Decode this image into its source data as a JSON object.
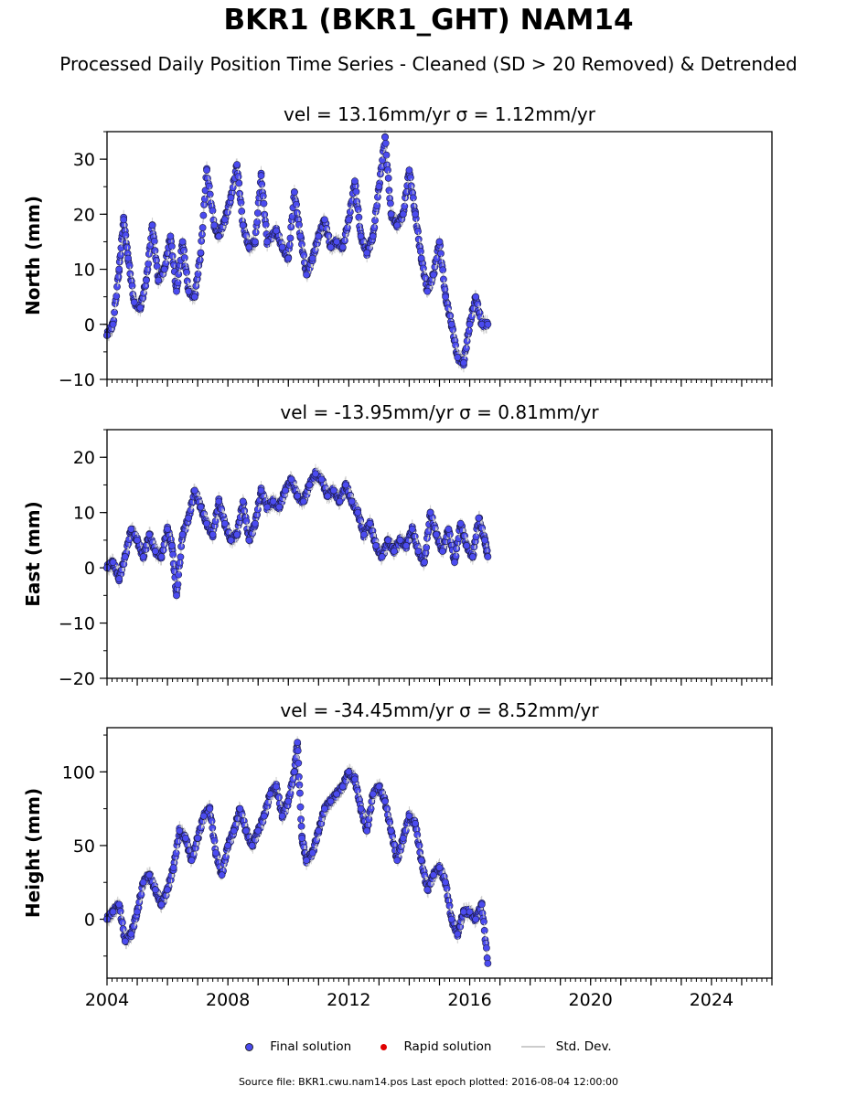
{
  "title": "BKR1 (BKR1_GHT) NAM14",
  "subtitle": "Processed Daily Position Time Series - Cleaned (SD > 20 Removed) & Detrended",
  "legend": {
    "final": "Final solution",
    "rapid": "Rapid solution",
    "std": "Std. Dev."
  },
  "footer": "Source file: BKR1.cwu.nam14.pos  Last epoch plotted: 2016-08-04 12:00:00",
  "colors": {
    "final": "#4b4bf0",
    "rapid": "#e00000",
    "std": "#cccccc"
  },
  "chart_data": [
    {
      "type": "scatter",
      "title": "vel = 13.16mm/yr   σ = 1.12mm/yr",
      "ylabel": "North (mm)",
      "xlim": [
        2004,
        2026
      ],
      "ylim": [
        -10,
        35
      ],
      "yticks": [
        -10,
        0,
        10,
        20,
        30
      ],
      "xticks": [
        2004,
        2008,
        2012,
        2016,
        2020,
        2024
      ],
      "series": [
        {
          "name": "Final solution",
          "x": [
            2004.0,
            2004.2,
            2004.4,
            2004.55,
            2004.7,
            2004.9,
            2005.1,
            2005.3,
            2005.5,
            2005.7,
            2005.9,
            2006.1,
            2006.3,
            2006.5,
            2006.7,
            2006.9,
            2007.1,
            2007.3,
            2007.55,
            2007.7,
            2007.9,
            2008.1,
            2008.3,
            2008.5,
            2008.7,
            2008.9,
            2009.1,
            2009.3,
            2009.6,
            2009.8,
            2010.0,
            2010.2,
            2010.4,
            2010.6,
            2010.8,
            2011.0,
            2011.2,
            2011.4,
            2011.6,
            2011.8,
            2012.0,
            2012.2,
            2012.4,
            2012.6,
            2012.8,
            2013.0,
            2013.2,
            2013.4,
            2013.6,
            2013.8,
            2014.0,
            2014.2,
            2014.4,
            2014.6,
            2014.8,
            2015.0,
            2015.2,
            2015.4,
            2015.6,
            2015.8,
            2016.0,
            2016.2,
            2016.4,
            2016.6
          ],
          "y": [
            -2,
            0,
            10,
            19,
            12,
            4,
            3,
            8,
            18,
            8,
            10,
            16,
            6,
            15,
            6,
            5,
            13,
            28,
            18,
            16,
            19,
            23,
            29,
            18,
            14,
            15,
            27,
            15,
            17,
            14,
            12,
            24,
            16,
            9,
            12,
            16,
            19,
            14,
            15,
            14,
            19,
            26,
            16,
            13,
            16,
            25,
            34,
            20,
            18,
            20,
            28,
            20,
            12,
            6,
            9,
            15,
            5,
            0,
            -6,
            -7,
            0,
            5,
            0,
            0
          ]
        }
      ]
    },
    {
      "type": "scatter",
      "title": "vel = -13.95mm/yr   σ = 0.81mm/yr",
      "ylabel": "East (mm)",
      "xlim": [
        2004,
        2026
      ],
      "ylim": [
        -20,
        25
      ],
      "yticks": [
        -20,
        -10,
        0,
        10,
        20
      ],
      "xticks": [
        2004,
        2008,
        2012,
        2016,
        2020,
        2024
      ],
      "series": [
        {
          "name": "Final solution",
          "x": [
            2004.0,
            2004.2,
            2004.4,
            2004.6,
            2004.8,
            2005.0,
            2005.2,
            2005.4,
            2005.6,
            2005.8,
            2006.0,
            2006.15,
            2006.3,
            2006.5,
            2006.7,
            2006.9,
            2007.1,
            2007.3,
            2007.5,
            2007.7,
            2007.9,
            2008.1,
            2008.3,
            2008.5,
            2008.7,
            2008.9,
            2009.1,
            2009.3,
            2009.5,
            2009.7,
            2009.9,
            2010.1,
            2010.3,
            2010.5,
            2010.7,
            2010.9,
            2011.1,
            2011.3,
            2011.5,
            2011.7,
            2011.9,
            2012.1,
            2012.3,
            2012.5,
            2012.7,
            2012.9,
            2013.1,
            2013.3,
            2013.5,
            2013.7,
            2013.9,
            2014.1,
            2014.3,
            2014.5,
            2014.7,
            2014.9,
            2015.1,
            2015.3,
            2015.5,
            2015.7,
            2015.9,
            2016.1,
            2016.3,
            2016.5,
            2016.6
          ],
          "y": [
            0,
            1,
            -2,
            2,
            7,
            5,
            2,
            6,
            3,
            2,
            7,
            4,
            -5,
            6,
            9,
            14,
            11,
            8,
            6,
            12,
            8,
            5,
            6,
            12,
            5,
            8,
            14,
            11,
            12,
            11,
            14,
            16,
            13,
            12,
            15,
            17,
            16,
            13,
            14,
            12,
            15,
            12,
            10,
            6,
            8,
            4,
            2,
            5,
            3,
            5,
            4,
            7,
            3,
            1,
            10,
            6,
            3,
            7,
            1,
            8,
            4,
            2,
            9,
            5,
            2
          ]
        }
      ]
    },
    {
      "type": "scatter",
      "title": "vel = -34.45mm/yr   σ = 8.52mm/yr",
      "ylabel": "Height (mm)",
      "xlim": [
        2004,
        2026
      ],
      "ylim": [
        -40,
        130
      ],
      "yticks": [
        0,
        50,
        100
      ],
      "xticks": [
        2004,
        2008,
        2012,
        2016,
        2020,
        2024
      ],
      "series": [
        {
          "name": "Final solution",
          "x": [
            2004.0,
            2004.2,
            2004.4,
            2004.6,
            2004.8,
            2005.0,
            2005.2,
            2005.4,
            2005.6,
            2005.8,
            2006.0,
            2006.2,
            2006.4,
            2006.6,
            2006.8,
            2007.0,
            2007.2,
            2007.4,
            2007.6,
            2007.8,
            2008.0,
            2008.2,
            2008.4,
            2008.6,
            2008.8,
            2009.0,
            2009.2,
            2009.4,
            2009.6,
            2009.8,
            2010.0,
            2010.2,
            2010.3,
            2010.45,
            2010.6,
            2010.8,
            2011.0,
            2011.2,
            2011.4,
            2011.6,
            2011.8,
            2012.0,
            2012.2,
            2012.4,
            2012.6,
            2012.8,
            2013.0,
            2013.2,
            2013.4,
            2013.6,
            2013.8,
            2014.0,
            2014.2,
            2014.4,
            2014.6,
            2014.8,
            2015.0,
            2015.2,
            2015.4,
            2015.6,
            2015.8,
            2016.0,
            2016.2,
            2016.4,
            2016.6
          ],
          "y": [
            0,
            5,
            10,
            -15,
            -10,
            5,
            25,
            30,
            20,
            10,
            20,
            35,
            60,
            55,
            40,
            55,
            70,
            75,
            45,
            30,
            50,
            60,
            75,
            60,
            50,
            60,
            70,
            85,
            90,
            70,
            80,
            100,
            120,
            55,
            40,
            45,
            60,
            75,
            80,
            85,
            90,
            100,
            95,
            75,
            60,
            85,
            90,
            80,
            60,
            40,
            55,
            70,
            65,
            40,
            20,
            30,
            35,
            25,
            0,
            -10,
            5,
            5,
            0,
            10,
            -30
          ]
        }
      ]
    }
  ]
}
